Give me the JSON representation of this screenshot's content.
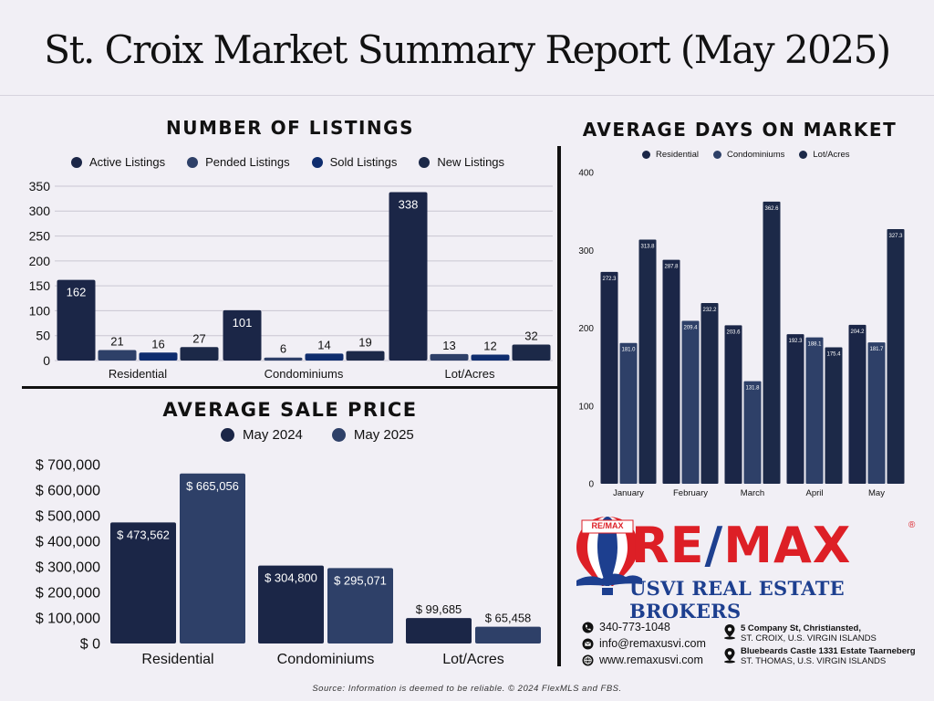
{
  "title": "St. Croix Market Summary Report (May 2025)",
  "source_note": "Source: Information is deemed to be reliable. © 2024 FlexMLS and FBS.",
  "colors": {
    "background": "#f1eff5",
    "series_dark": "#1b2647",
    "series_slate": "#2e4068",
    "series_navy": "#0f2d6e",
    "series_mid": "#1c2948",
    "remax_red": "#dd1f26",
    "remax_blue": "#1d3f8f"
  },
  "chart_data": [
    {
      "id": "listings",
      "type": "bar",
      "title": "NUMBER OF LISTINGS",
      "categories": [
        "Residential",
        "Condominiums",
        "Lot/Acres"
      ],
      "series": [
        {
          "name": "Active Listings",
          "values": [
            162,
            101,
            338
          ]
        },
        {
          "name": "Pended Listings",
          "values": [
            21,
            6,
            13
          ]
        },
        {
          "name": "Sold Listings",
          "values": [
            16,
            14,
            12
          ]
        },
        {
          "name": "New Listings",
          "values": [
            27,
            19,
            32
          ]
        }
      ],
      "ylim": [
        0,
        350
      ],
      "yticks": [
        "0",
        "50",
        "100",
        "150",
        "200",
        "250",
        "300",
        "350"
      ],
      "data_labels": [
        [
          "162",
          "101",
          "338"
        ],
        [
          "21",
          "6",
          "13"
        ],
        [
          "16",
          "14",
          "12"
        ],
        [
          "27",
          "19",
          "32"
        ]
      ],
      "grid": true,
      "legend_position": "top"
    },
    {
      "id": "sale_price",
      "type": "bar",
      "title": "AVERAGE SALE PRICE",
      "categories": [
        "Residential",
        "Condominiums",
        "Lot/Acres"
      ],
      "series": [
        {
          "name": "May 2024",
          "values": [
            473562,
            304800,
            99685
          ]
        },
        {
          "name": "May 2025",
          "values": [
            665056,
            295071,
            65458
          ]
        }
      ],
      "ylim": [
        0,
        700000
      ],
      "yticks": [
        "$ 0",
        "$ 100,000",
        "$ 200,000",
        "$ 300,000",
        "$ 400,000",
        "$ 500,000",
        "$ 600,000",
        "$ 700,000"
      ],
      "data_labels": [
        [
          "$ 473,562",
          "$ 304,800",
          "$ 99,685"
        ],
        [
          "$ 665,056",
          "$ 295,071",
          "$ 65,458"
        ]
      ],
      "grid": false,
      "legend_position": "top"
    },
    {
      "id": "days_on_market",
      "type": "bar",
      "title": "AVERAGE DAYS ON MARKET",
      "categories": [
        "January",
        "February",
        "March",
        "April",
        "May"
      ],
      "series": [
        {
          "name": "Residential",
          "values": [
            272.3,
            287.8,
            203.6,
            192.3,
            204.2
          ]
        },
        {
          "name": "Condominiums",
          "values": [
            181.0,
            209.4,
            131.8,
            188.1,
            181.7
          ]
        },
        {
          "name": "Lot/Acres",
          "values": [
            313.8,
            232.2,
            362.6,
            175.4,
            327.3
          ]
        }
      ],
      "ylim": [
        0,
        400
      ],
      "yticks": [
        "0",
        "100",
        "200",
        "300",
        "400"
      ],
      "data_labels": [
        [
          "272.3",
          "287.8",
          "203.6",
          "192.3",
          "204.2"
        ],
        [
          "181.0",
          "209.4",
          "131.8",
          "188.1",
          "181.7"
        ],
        [
          "313.8",
          "232.2",
          "362.6",
          "175.4",
          "327.3"
        ]
      ],
      "grid": false,
      "legend_position": "top"
    }
  ],
  "brand": {
    "badge_text": "RE/MAX",
    "logo_re": "RE",
    "logo_slash": "/",
    "logo_max": "MAX",
    "registered": "®",
    "subtitle": "USVI REAL ESTATE BROKERS"
  },
  "contacts": {
    "phone": "340-773-1048",
    "email": "info@remaxusvi.com",
    "website": "www.remaxusvi.com",
    "phone_icon": "phone-icon",
    "email_icon": "mail-icon",
    "web_icon": "globe-icon",
    "office1_line1": "5 Company St, Christiansted,",
    "office1_line2": "ST. CROIX, U.S. VIRGIN ISLANDS",
    "office2_line1": "Bluebeards Castle 1331 Estate Taarneberg",
    "office2_line2": "ST. THOMAS, U.S. VIRGIN ISLANDS",
    "pin_icon": "map-pin-icon"
  }
}
